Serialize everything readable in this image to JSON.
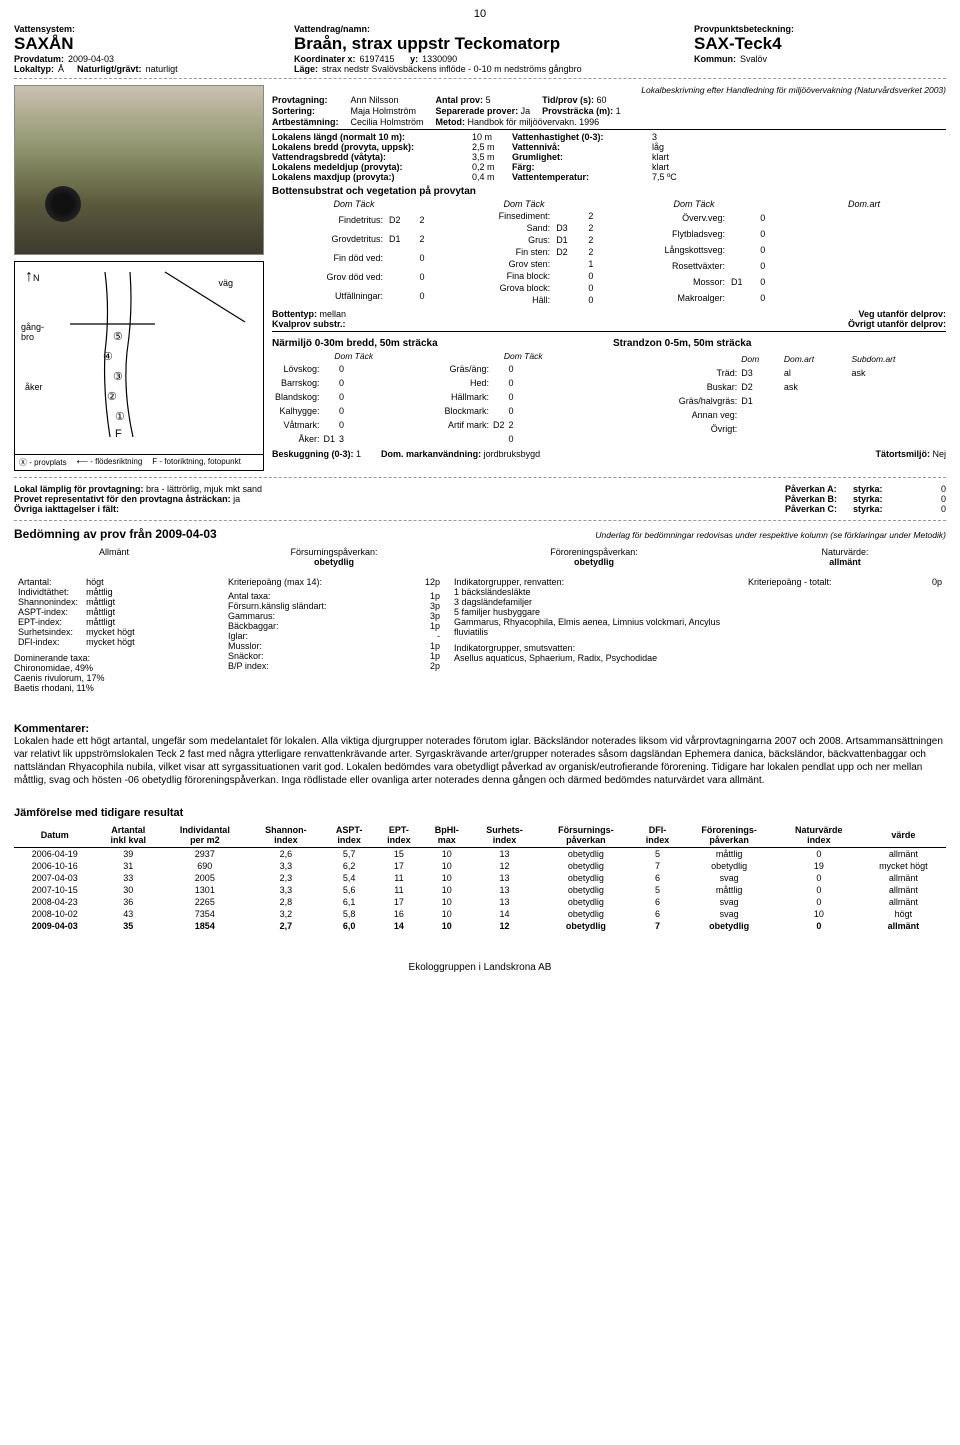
{
  "page_number": "10",
  "header": {
    "vattensystem_label": "Vattensystem:",
    "vattensystem": "SAXÅN",
    "vattendrag_label": "Vattendrag/namn:",
    "vattendrag": "Braån, strax uppstr Teckomatorp",
    "provpunkt_label": "Provpunktsbeteckning:",
    "provpunkt": "SAX-Teck4",
    "provdatum_label": "Provdatum:",
    "provdatum": "2009-04-03",
    "koord_x_label": "Koordinater x:",
    "koord_x": "6197415",
    "koord_y_label": "y:",
    "koord_y": "1330090",
    "kommun_label": "Kommun:",
    "kommun": "Svalöv",
    "lokaltyp_label": "Lokaltyp:",
    "lokaltyp": "Å",
    "nat_label": "Naturligt/grävt:",
    "nat": "naturligt",
    "lage_label": "Läge:",
    "lage": "strax nedstr Svalövsbäckens inflöde - 0-10 m nedströms gångbro"
  },
  "lokalbeskr_note": "Lokalbeskrivning efter Handledning för miljöövervakning (Naturvårdsverket 2003)",
  "provinfo": {
    "provtagning_k": "Provtagning:",
    "provtagning": "Ann Nilsson",
    "sortering_k": "Sortering:",
    "sortering": "Maja Holmström",
    "artbest_k": "Artbestämning:",
    "artbest": "Cecilia Holmström",
    "antal_k": "Antal prov:",
    "antal": "5",
    "sep_k": "Separerade prover:",
    "sep": "Ja",
    "metod_k": "Metod:",
    "metod": "Handbok för miljöövervakn. 1996",
    "tid_k": "Tid/prov (s):",
    "tid": "60",
    "provstracka_k": "Provsträcka (m):",
    "provstracka": "1"
  },
  "lokal": {
    "rows": [
      [
        "Lokalens längd (normalt 10 m):",
        "10 m",
        "Vattenhastighet (0-3):",
        "3"
      ],
      [
        "Lokalens bredd (provyta, uppsk):",
        "2,5 m",
        "Vattennivå:",
        "låg"
      ],
      [
        "Vattendragsbredd (våtyta):",
        "3,5 m",
        "Grumlighet:",
        "klart"
      ],
      [
        "Lokalens medeldjup (provyta):",
        "0,2 m",
        "Färg:",
        "klart"
      ],
      [
        "Lokalens maxdjup (provyta:)",
        "0,4 m",
        "Vattentemperatur:",
        "7,5 ºC"
      ]
    ]
  },
  "botten": {
    "title": "Bottensubstrat och vegetation på provytan",
    "colh": "Dom Täck",
    "col1": [
      [
        "Findetritus:",
        "D2",
        "2"
      ],
      [
        "Grovdetritus:",
        "D1",
        "2"
      ],
      [
        "Fin död ved:",
        "",
        "0"
      ],
      [
        "Grov död ved:",
        "",
        "0"
      ],
      [
        "Utfällningar:",
        "",
        "0"
      ]
    ],
    "col2": [
      [
        "Finsediment:",
        "",
        "2"
      ],
      [
        "Sand:",
        "D3",
        "2"
      ],
      [
        "Grus:",
        "D1",
        "2"
      ],
      [
        "Fin sten:",
        "D2",
        "2"
      ],
      [
        "Grov sten:",
        "",
        "1"
      ],
      [
        "Fina block:",
        "",
        "0"
      ],
      [
        "Grova block:",
        "",
        "0"
      ],
      [
        "Häll:",
        "",
        "0"
      ]
    ],
    "col3": [
      [
        "Överv.veg:",
        "",
        "0"
      ],
      [
        "Flytbladsveg:",
        "",
        "0"
      ],
      [
        "Långskottsveg:",
        "",
        "0"
      ],
      [
        "Rosettväxter:",
        "",
        "0"
      ],
      [
        "Mossor:",
        "D1",
        "0"
      ],
      [
        "Makroalger:",
        "",
        "0"
      ]
    ],
    "col4_h": "Dom.art",
    "bottentyp_k": "Bottentyp:",
    "bottentyp": "mellan",
    "kvalprov_k": "Kvalprov substr.:",
    "veg_utan_k": "Veg utanför delprov:",
    "ovrigt_utan_k": "Övrigt utanför delprov:"
  },
  "narmiljo": {
    "title1": "Närmiljö 0-30m bredd, 50m sträcka",
    "title2": "Strandzon 0-5m, 50m sträcka",
    "rows1": [
      [
        "Lövskog:",
        "",
        "0"
      ],
      [
        "Barrskog:",
        "",
        "0"
      ],
      [
        "Blandskog:",
        "",
        "0"
      ],
      [
        "Kalhygge:",
        "",
        "0"
      ],
      [
        "Våtmark:",
        "",
        "0"
      ],
      [
        "Åker:",
        "D1",
        "3"
      ]
    ],
    "rows1b": [
      [
        "Gräs/äng:",
        "",
        "0"
      ],
      [
        "Hed:",
        "",
        "0"
      ],
      [
        "Hällmark:",
        "",
        "0"
      ],
      [
        "Blockmark:",
        "",
        "0"
      ],
      [
        "Artif mark:",
        "D2",
        "2"
      ],
      [
        "",
        "",
        "0"
      ]
    ],
    "strand_h": [
      "Dom",
      "Dom.art",
      "Subdom.art"
    ],
    "strand": [
      [
        "Träd:",
        "D3",
        "al",
        "ask"
      ],
      [
        "Buskar:",
        "D2",
        "ask",
        ""
      ],
      [
        "Gräs/halvgräs:",
        "D1",
        "",
        ""
      ],
      [
        "Annan veg:",
        "",
        "",
        ""
      ],
      [
        "Övrigt:",
        "",
        "",
        ""
      ]
    ],
    "beskugg_k": "Beskuggning (0-3):",
    "beskugg": "1",
    "dommark_k": "Dom. markanvändning:",
    "dommark": "jordbruksbygd",
    "tatort_k": "Tätortsmiljö:",
    "tatort": "Nej"
  },
  "map_labels": {
    "n": "N",
    "vag": "väg",
    "gangbro": "gång-\nbro",
    "aker": "åker",
    "f": "F",
    "num": [
      "⑤",
      "④",
      "③",
      "②",
      "①"
    ],
    "legend": [
      "Ⓧ - provplats",
      "⟵ - flödesriktning",
      "F - fotoriktning, fotopunkt"
    ]
  },
  "lamplig": {
    "row1_k": "Lokal lämplig för provtagning:",
    "row1": "bra - lättrörlig, mjuk mkt sand",
    "row2_k": "Provet representativt för den provtagna åsträckan:",
    "row2": "ja",
    "row3_k": "Övriga iakttagelser i fält:"
  },
  "paverkan": {
    "a_k": "Påverkan A:",
    "b_k": "Påverkan B:",
    "c_k": "Påverkan C:",
    "styrka_k": "styrka:",
    "a": "0",
    "b": "0",
    "c": "0"
  },
  "bedom": {
    "title": "Bedömning av prov från 2009-04-03",
    "underlag": "Underlag för bedömningar redovisas under respektive kolumn (se förklaringar under Metodik)",
    "allmant_h": "Allmänt",
    "forsurn_h": "Försurningspåverkan:",
    "forsurn_v": "obetydlig",
    "fororen_h": "Föroreningspåverkan:",
    "fororen_v": "obetydlig",
    "natur_h": "Naturvärde:",
    "natur_v": "allmänt",
    "allmant": [
      [
        "Artantal:",
        "högt"
      ],
      [
        "Individtäthet:",
        "måttlig"
      ],
      [
        "Shannonindex:",
        "måttligt"
      ],
      [
        "ASPT-index:",
        "måttligt"
      ],
      [
        "EPT-index:",
        "måttligt"
      ],
      [
        "Surhetsindex:",
        "mycket högt"
      ],
      [
        "DFI-index:",
        "mycket högt"
      ]
    ],
    "domtaxa_k": "Dominerande taxa:",
    "domtaxa": [
      "Chironomidae, 49%",
      "Caenis rivulorum, 17%",
      "Baetis rhodani, 11%"
    ],
    "krit_k": "Kriteriepoäng (max 14):",
    "krit_v": "12p",
    "forsurn_rows": [
      [
        "Antal taxa:",
        "1p"
      ],
      [
        "Försurn.känslig sländart:",
        "3p"
      ],
      [
        "Gammarus:",
        "3p"
      ],
      [
        "Bäckbaggar:",
        "1p"
      ],
      [
        "Iglar:",
        "-"
      ],
      [
        "Musslor:",
        "1p"
      ],
      [
        "Snäckor:",
        "1p"
      ],
      [
        "B/P index:",
        "2p"
      ]
    ],
    "indik_ren_k": "Indikatorgrupper, renvatten:",
    "indik_ren": [
      "1 bäcksländesläkte",
      "3 dagsländefamiljer",
      "5 familjer husbyggare",
      "Gammarus, Rhyacophila, Elmis aenea, Limnius volckmari, Ancylus fluviatilis"
    ],
    "indik_smuts_k": "Indikatorgrupper, smutsvatten:",
    "indik_smuts": "Asellus aquaticus, Sphaerium, Radix, Psychodidae",
    "krit_tot_k": "Kriteriepoäng - totalt:",
    "krit_tot_v": "0p"
  },
  "kommentar": {
    "title": "Kommentarer:",
    "text": "Lokalen hade ett högt artantal, ungefär som medelantalet för lokalen. Alla viktiga djurgrupper noterades förutom iglar. Bäcksländor noterades liksom vid vårprovtagningarna 2007 och 2008. Artsammansättningen var relativt lik uppströmslokalen Teck 2 fast med några ytterligare renvattenkrävande arter. Syrgaskrävande arter/grupper noterades såsom dagsländan Ephemera danica, bäcksländor, bäckvattenbaggar och nattsländan Rhyacophila nubila, vilket visar att syrgassituationen varit god.  Lokalen bedömdes vara obetydligt påverkad av organisk/eutrofierande förorening. Tidigare har lokalen pendlat upp och ner mellan måttlig, svag och hösten -06 obetydlig föroreningspåverkan.  Inga rödlistade eller ovanliga arter noterades denna gången och därmed bedömdes naturvärdet vara allmänt."
  },
  "jamfor": {
    "title": "Jämförelse med tidigare resultat",
    "headers": [
      "Datum",
      "Artantal\ninkl kval",
      "Individantal\nper m2",
      "Shannon-\nindex",
      "ASPT-\nindex",
      "EPT-\nindex",
      "BpHI-\nmax",
      "Surhets-\nindex",
      "Försurnings-\npåverkan",
      "DFI-\nindex",
      "Förorenings-\npåverkan",
      "Naturvärde\nindex",
      "värde"
    ],
    "rows": [
      [
        "2006-04-19",
        "39",
        "2937",
        "2,6",
        "5,7",
        "15",
        "10",
        "13",
        "obetydlig",
        "5",
        "måttlig",
        "0",
        "allmänt"
      ],
      [
        "2006-10-16",
        "31",
        "690",
        "3,3",
        "6,2",
        "17",
        "10",
        "12",
        "obetydlig",
        "7",
        "obetydlig",
        "19",
        "mycket högt"
      ],
      [
        "2007-04-03",
        "33",
        "2005",
        "2,3",
        "5,4",
        "11",
        "10",
        "13",
        "obetydlig",
        "6",
        "svag",
        "0",
        "allmänt"
      ],
      [
        "2007-10-15",
        "30",
        "1301",
        "3,3",
        "5,6",
        "11",
        "10",
        "13",
        "obetydlig",
        "5",
        "måttlig",
        "0",
        "allmänt"
      ],
      [
        "2008-04-23",
        "36",
        "2265",
        "2,8",
        "6,1",
        "17",
        "10",
        "13",
        "obetydlig",
        "6",
        "svag",
        "0",
        "allmänt"
      ],
      [
        "2008-10-02",
        "43",
        "7354",
        "3,2",
        "5,8",
        "16",
        "10",
        "14",
        "obetydlig",
        "6",
        "svag",
        "10",
        "högt"
      ],
      [
        "2009-04-03",
        "35",
        "1854",
        "2,7",
        "6,0",
        "14",
        "10",
        "12",
        "obetydlig",
        "7",
        "obetydlig",
        "0",
        "allmänt"
      ]
    ]
  },
  "footer": "Ekologgruppen i Landskrona AB"
}
